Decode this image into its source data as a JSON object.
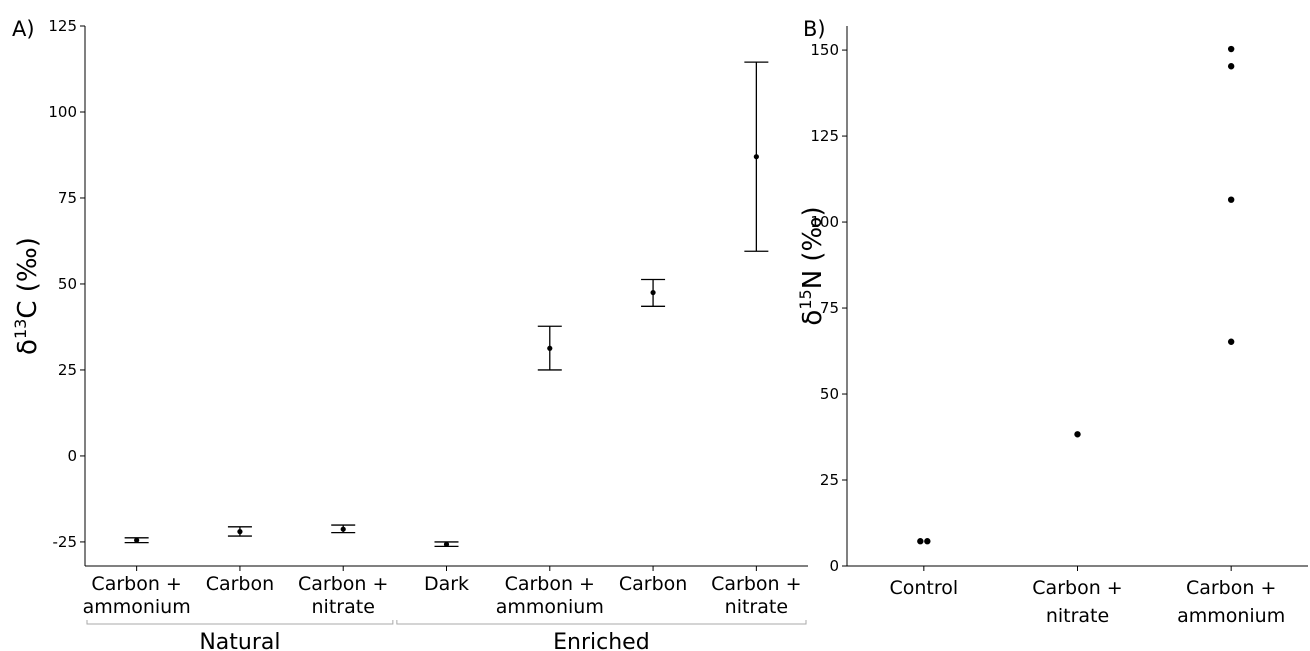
{
  "chart_data": [
    {
      "panel_label": "A)",
      "type": "scatter",
      "subtype": "point with error bars",
      "ylabel": "δ13C (‰)",
      "ylabel_parts": {
        "symbol": "δ",
        "sup": "13",
        "rest": "C (‰)"
      },
      "ylim": [
        -32,
        125
      ],
      "yticks": [
        -25,
        0,
        25,
        50,
        75,
        100,
        125
      ],
      "grid": false,
      "groups": [
        {
          "name": "Natural",
          "categories": [
            {
              "label": [
                "Carbon +",
                "ammonium"
              ],
              "mean": -24.5,
              "lower": -25.2,
              "upper": -23.8
            },
            {
              "label": [
                "Carbon"
              ],
              "mean": -22.0,
              "lower": -23.3,
              "upper": -20.6
            },
            {
              "label": [
                "Carbon +",
                "nitrate"
              ],
              "mean": -21.3,
              "lower": -22.3,
              "upper": -20.1
            }
          ]
        },
        {
          "name": "Enriched",
          "categories": [
            {
              "label": [
                "Dark"
              ],
              "mean": -25.7,
              "lower": -26.3,
              "upper": -25.0
            },
            {
              "label": [
                "Carbon +",
                "ammonium"
              ],
              "mean": 31.3,
              "lower": 25.0,
              "upper": 37.7
            },
            {
              "label": [
                "Carbon"
              ],
              "mean": 47.5,
              "lower": 43.5,
              "upper": 51.3
            },
            {
              "label": [
                "Carbon +",
                "nitrate"
              ],
              "mean": 87.0,
              "lower": 59.5,
              "upper": 114.5
            }
          ]
        }
      ]
    },
    {
      "panel_label": "B)",
      "type": "scatter",
      "ylabel": "δ15N (‰)",
      "ylabel_parts": {
        "symbol": "δ",
        "sup": "15",
        "rest": "N (‰)"
      },
      "ylim": [
        0,
        157
      ],
      "yticks": [
        0,
        25,
        50,
        75,
        100,
        125,
        150
      ],
      "grid": false,
      "categories": [
        [
          "Control"
        ],
        [
          "Carbon +",
          "nitrate"
        ],
        [
          "Carbon +",
          "ammonium"
        ]
      ],
      "points": [
        {
          "category": 0,
          "y": 7.2,
          "jitter": -1
        },
        {
          "category": 0,
          "y": 7.2,
          "jitter": 1
        },
        {
          "category": 1,
          "y": 38.3,
          "jitter": 0
        },
        {
          "category": 2,
          "y": 150.3,
          "jitter": 0
        },
        {
          "category": 2,
          "y": 145.3,
          "jitter": 0
        },
        {
          "category": 2,
          "y": 106.5,
          "jitter": 0
        },
        {
          "category": 2,
          "y": 65.2,
          "jitter": 0
        }
      ]
    }
  ]
}
